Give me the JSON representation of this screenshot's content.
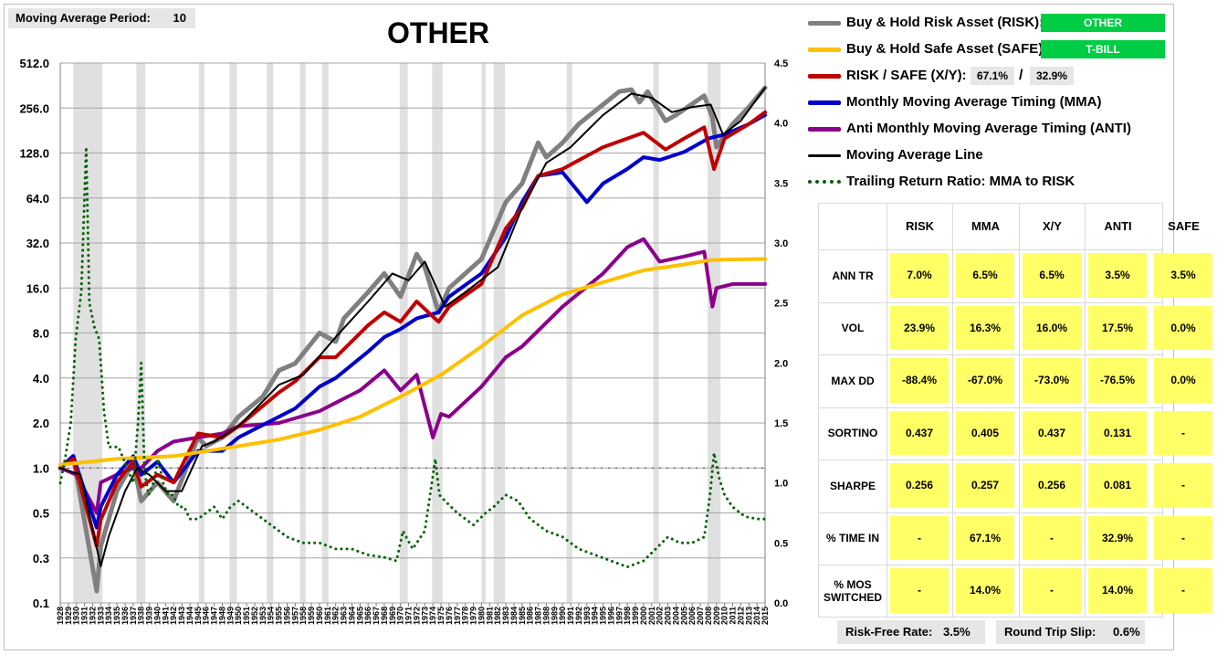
{
  "header": {
    "moving_average_label": "Moving Average Period:",
    "moving_average_value": "10",
    "title": "OTHER"
  },
  "legend": {
    "risk_label": "Buy & Hold Risk Asset (RISK):",
    "risk_asset": "OTHER",
    "safe_label": "Buy & Hold Safe Asset (SAFE):",
    "safe_asset": "T-BILL",
    "xy_label": "RISK / SAFE (X/Y):",
    "xy_risk_pct": "67.1%",
    "xy_sep": "/",
    "xy_safe_pct": "32.9%",
    "mma_label": "Monthly Moving Average Timing (MMA)",
    "anti_label": "Anti Monthly Moving Average Timing (ANTI)",
    "ma_line_label": "Moving Average Line",
    "ratio_label": "Trailing Return Ratio: MMA to RISK"
  },
  "colors": {
    "risk": "#808080",
    "safe": "#ffc000",
    "xy": "#c00000",
    "mma": "#0000cc",
    "anti": "#8b008b",
    "ma_line": "#000000",
    "ratio": "#006400",
    "badge": "#00cc44",
    "cell": "#ffff66"
  },
  "stats": {
    "columns": [
      "RISK",
      "MMA",
      "X/Y",
      "ANTI",
      "SAFE"
    ],
    "rows": [
      {
        "label": "ANN TR",
        "values": [
          "7.0%",
          "6.5%",
          "6.5%",
          "3.5%",
          "3.5%"
        ]
      },
      {
        "label": "VOL",
        "values": [
          "23.9%",
          "16.3%",
          "16.0%",
          "17.5%",
          "0.0%"
        ]
      },
      {
        "label": "MAX DD",
        "values": [
          "-88.4%",
          "-67.0%",
          "-73.0%",
          "-76.5%",
          "0.0%"
        ]
      },
      {
        "label": "SORTINO",
        "values": [
          "0.437",
          "0.405",
          "0.437",
          "0.131",
          "-"
        ]
      },
      {
        "label": "SHARPE",
        "values": [
          "0.256",
          "0.257",
          "0.256",
          "0.081",
          "-"
        ]
      },
      {
        "label": "% TIME IN",
        "values": [
          "-",
          "67.1%",
          "-",
          "32.9%",
          "-"
        ]
      },
      {
        "label": "% MOS SWITCHED",
        "values": [
          "-",
          "14.0%",
          "-",
          "14.0%",
          "-"
        ]
      }
    ]
  },
  "footer": {
    "risk_free_label": "Risk-Free Rate:",
    "risk_free_value": "3.5%",
    "slip_label": "Round Trip Slip:",
    "slip_value": "0.6%"
  },
  "chart_data": {
    "type": "line",
    "left_axis": {
      "scale": "log2",
      "ticks": [
        "0.1",
        "0.3",
        "0.5",
        "1.0",
        "2.0",
        "4.0",
        "8.0",
        "16.0",
        "32.0",
        "64.0",
        "128.0",
        "256.0",
        "512.0"
      ]
    },
    "right_axis": {
      "ticks": [
        "0.0",
        "0.5",
        "1.0",
        "1.5",
        "2.0",
        "2.5",
        "3.0",
        "3.5",
        "4.0",
        "4.5"
      ],
      "ylim": [
        0,
        4.5
      ]
    },
    "x_tick_labels": [
      "1928",
      "1929",
      "1930",
      "1931",
      "1932",
      "1933",
      "1934",
      "1935",
      "1936",
      "1937",
      "1938",
      "1939",
      "1940",
      "1941",
      "1942",
      "1943",
      "1944",
      "1945",
      "1946",
      "1947",
      "1948",
      "1949",
      "1950",
      "1951",
      "1952",
      "1953",
      "1954",
      "1955",
      "1956",
      "1957",
      "1958",
      "1959",
      "1960",
      "1961",
      "1962",
      "1963",
      "1964",
      "1965",
      "1966",
      "1967",
      "1968",
      "1969",
      "1970",
      "1971",
      "1972",
      "1973",
      "1974",
      "1975",
      "1976",
      "1977",
      "1978",
      "1979",
      "1980",
      "1981",
      "1982",
      "1983",
      "1984",
      "1985",
      "1986",
      "1987",
      "1988",
      "1989",
      "1990",
      "1991",
      "1992",
      "1993",
      "1994",
      "1995",
      "1996",
      "1997",
      "1998",
      "1999",
      "2000",
      "2001",
      "2002",
      "2003",
      "2004",
      "2005",
      "2006",
      "2007",
      "2008",
      "2009",
      "2010",
      "2011",
      "2012",
      "2013",
      "2014",
      "2015"
    ],
    "recession_bands": [
      [
        1929.6,
        1933.2
      ],
      [
        1937.4,
        1938.5
      ],
      [
        1945.1,
        1945.8
      ],
      [
        1948.9,
        1949.8
      ],
      [
        1953.5,
        1954.3
      ],
      [
        1957.6,
        1958.3
      ],
      [
        1960.3,
        1961.1
      ],
      [
        1969.9,
        1970.9
      ],
      [
        1973.9,
        1975.2
      ],
      [
        1980.0,
        1980.5
      ],
      [
        1981.5,
        1982.9
      ],
      [
        1990.5,
        1991.2
      ],
      [
        2001.2,
        2001.9
      ],
      [
        2007.9,
        2009.5
      ]
    ],
    "grid": true,
    "series": [
      {
        "name": "Buy & Hold Risk Asset (RISK):",
        "axis": "left",
        "x": [
          1928,
          1929.6,
          1932.5,
          1933,
          1935,
          1937,
          1938,
          1940,
          1942,
          1945,
          1946,
          1948,
          1950,
          1953,
          1955,
          1957,
          1960,
          1962,
          1963,
          1966,
          1968,
          1970,
          1972,
          1973,
          1974.7,
          1976,
          1980,
          1983,
          1985,
          1987,
          1988,
          1990,
          1992,
          1995,
          1997,
          1998.5,
          1999.5,
          2000.5,
          2002.7,
          2004,
          2007.5,
          2008.5,
          2009,
          2011,
          2013,
          2015
        ],
        "y": [
          1.0,
          1.2,
          0.15,
          0.3,
          0.7,
          1.1,
          0.6,
          0.8,
          0.6,
          1.6,
          1.4,
          1.6,
          2.2,
          3.0,
          4.5,
          5.0,
          8.0,
          7.0,
          10,
          15,
          20,
          14,
          27,
          22,
          11,
          16,
          25,
          60,
          80,
          150,
          120,
          150,
          200,
          270,
          330,
          340,
          280,
          330,
          210,
          230,
          310,
          220,
          140,
          200,
          260,
          350
        ]
      },
      {
        "name": "Buy & Hold Safe Asset (SAFE):",
        "axis": "left",
        "x": [
          1928,
          1935,
          1942,
          1950,
          1955,
          1960,
          1965,
          1970,
          1975,
          1980,
          1985,
          1990,
          1995,
          2000,
          2005,
          2008,
          2010,
          2015
        ],
        "y": [
          1.05,
          1.15,
          1.2,
          1.4,
          1.55,
          1.8,
          2.2,
          3.0,
          4.2,
          6.5,
          10.5,
          14.5,
          17.5,
          21,
          23,
          24.5,
          24.8,
          25
        ]
      },
      {
        "name": "RISK / SAFE (X/Y):",
        "axis": "left",
        "x": [
          1928,
          1929.6,
          1932.5,
          1933,
          1935,
          1937,
          1938,
          1940,
          1942,
          1945,
          1948,
          1950,
          1955,
          1957,
          1960,
          1962,
          1966,
          1968,
          1970,
          1972,
          1974.7,
          1976,
          1980,
          1983,
          1985,
          1987,
          1990,
          1995,
          1998,
          2000,
          2002.7,
          2005,
          2007.5,
          2008.7,
          2010,
          2013,
          2015
        ],
        "y": [
          1.0,
          1.15,
          0.3,
          0.45,
          0.8,
          1.1,
          0.75,
          0.9,
          0.8,
          1.7,
          1.6,
          1.9,
          3.2,
          3.8,
          5.5,
          5.5,
          9,
          11,
          9.5,
          13,
          9.5,
          12,
          17,
          40,
          55,
          90,
          100,
          140,
          160,
          175,
          135,
          160,
          190,
          100,
          160,
          200,
          240
        ]
      },
      {
        "name": "Monthly Moving Average Timing (MMA)",
        "axis": "left",
        "x": [
          1928,
          1929.6,
          1932.5,
          1933,
          1935,
          1937,
          1938,
          1940,
          1942,
          1945,
          1948,
          1950,
          1955,
          1957,
          1960,
          1962,
          1966,
          1968,
          1970,
          1972,
          1974.7,
          1976,
          1980,
          1983,
          1985,
          1987,
          1990,
          1993,
          1995,
          1998,
          2000,
          2002,
          2005,
          2008,
          2010,
          2013,
          2015
        ],
        "y": [
          1.0,
          1.2,
          0.4,
          0.55,
          0.9,
          1.2,
          0.9,
          1.1,
          0.8,
          1.3,
          1.3,
          1.6,
          2.2,
          2.5,
          3.5,
          4.0,
          6.0,
          7.5,
          8.5,
          10,
          11,
          14,
          20,
          35,
          60,
          90,
          95,
          60,
          80,
          100,
          120,
          115,
          130,
          160,
          170,
          200,
          230
        ]
      },
      {
        "name": "Anti Monthly Moving Average Timing (ANTI)",
        "axis": "left",
        "x": [
          1928,
          1930,
          1932.5,
          1933,
          1935,
          1937,
          1938,
          1940,
          1942,
          1945,
          1948,
          1950,
          1955,
          1960,
          1965,
          1968,
          1970,
          1972,
          1974,
          1975,
          1976,
          1980,
          1983,
          1985,
          1990,
          1995,
          1998,
          2000,
          2002,
          2005,
          2007.5,
          2008.5,
          2009,
          2011,
          2015
        ],
        "y": [
          1.0,
          0.9,
          0.5,
          0.8,
          0.9,
          1.0,
          1.0,
          1.3,
          1.5,
          1.6,
          1.7,
          1.9,
          2.0,
          2.4,
          3.3,
          4.5,
          3.3,
          4.2,
          1.6,
          2.3,
          2.2,
          3.5,
          5.5,
          6.5,
          12,
          20,
          30,
          34,
          24,
          26,
          28,
          12,
          16,
          17,
          17
        ]
      },
      {
        "name": "Moving Average Line",
        "axis": "left",
        "x": [
          1928,
          1930.5,
          1933,
          1934,
          1936,
          1937.5,
          1939,
          1941,
          1943,
          1945.5,
          1947,
          1950,
          1955,
          1958,
          1962,
          1966,
          1969,
          1971,
          1973,
          1975.5,
          1978,
          1982,
          1985,
          1988,
          1991,
          1995,
          1998.5,
          2001,
          2003.5,
          2006,
          2008.3,
          2009.8,
          2012,
          2015
        ],
        "y": [
          1.0,
          0.9,
          0.22,
          0.35,
          0.7,
          1.0,
          0.9,
          0.7,
          0.7,
          1.4,
          1.5,
          1.9,
          3.6,
          4.2,
          7.5,
          13,
          20,
          18,
          24,
          12,
          15,
          22,
          55,
          110,
          140,
          230,
          320,
          300,
          240,
          260,
          270,
          170,
          210,
          350
        ]
      },
      {
        "name": "Trailing Return Ratio: MMA to RISK",
        "axis": "right",
        "x": [
          1928,
          1928.6,
          1929.3,
          1929.9,
          1930.6,
          1931.2,
          1931.6,
          1932.2,
          1932.8,
          1933.4,
          1934.0,
          1934.6,
          1935.2,
          1935.8,
          1936.4,
          1937.0,
          1937.6,
          1938.0,
          1938.4,
          1938.9,
          1939.5,
          1940.1,
          1940.7,
          1941.3,
          1941.9,
          1942.6,
          1943.3,
          1944.0,
          1945.0,
          1946.0,
          1947.0,
          1948.0,
          1949.0,
          1950.0,
          1952.0,
          1954.0,
          1956.0,
          1958.0,
          1960.0,
          1962.0,
          1964.0,
          1966.0,
          1968.0,
          1969.5,
          1970.3,
          1971.5,
          1973.0,
          1974.3,
          1974.8,
          1975.5,
          1977.0,
          1979.0,
          1980.5,
          1981.5,
          1983.0,
          1984.5,
          1986.0,
          1988.0,
          1990.0,
          1992.0,
          1994.0,
          1996.0,
          1998.0,
          2000.0,
          2001.5,
          2003.0,
          2004.5,
          2006.0,
          2007.5,
          2008.2,
          2008.7,
          2009.3,
          2010.0,
          2011.0,
          2012.5,
          2014.0,
          2015.0
        ],
        "y": [
          1.0,
          1.2,
          1.5,
          2.2,
          2.6,
          3.8,
          2.5,
          2.3,
          2.2,
          1.6,
          1.3,
          1.3,
          1.3,
          1.2,
          1.1,
          1.0,
          1.5,
          2.0,
          1.1,
          0.9,
          1.0,
          1.2,
          1.0,
          0.9,
          0.9,
          0.8,
          0.8,
          0.7,
          0.7,
          0.75,
          0.8,
          0.7,
          0.8,
          0.85,
          0.75,
          0.65,
          0.55,
          0.5,
          0.5,
          0.45,
          0.45,
          0.4,
          0.38,
          0.35,
          0.6,
          0.45,
          0.6,
          1.2,
          0.9,
          0.85,
          0.75,
          0.65,
          0.75,
          0.8,
          0.9,
          0.85,
          0.7,
          0.6,
          0.55,
          0.45,
          0.4,
          0.35,
          0.3,
          0.35,
          0.45,
          0.55,
          0.5,
          0.5,
          0.55,
          0.9,
          1.25,
          1.05,
          0.9,
          0.8,
          0.72,
          0.7,
          0.7
        ]
      }
    ]
  }
}
